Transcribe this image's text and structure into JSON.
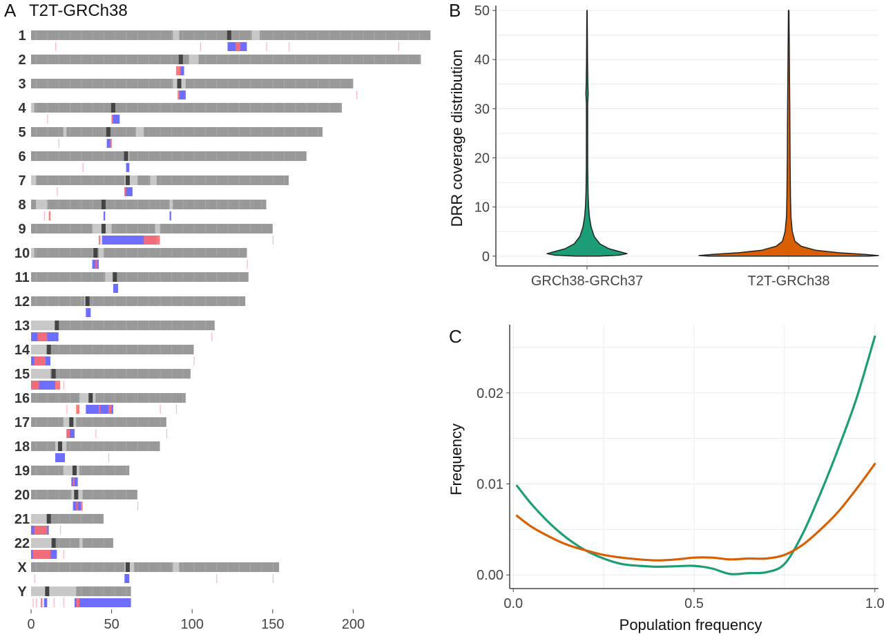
{
  "colors": {
    "chrom_body": "#999999",
    "centromere": "#444444",
    "light_band": "#c8c8c8",
    "blue": "#6d6dff",
    "red": "#ff6b6b",
    "green": "#1b9e77",
    "orange": "#d95f02"
  },
  "chart_data": [
    {
      "panel": "A",
      "type": "ideogram",
      "title": "T2T-GRCh38",
      "xlim": [
        0,
        250
      ],
      "xticks": [
        0,
        50,
        100,
        150,
        200
      ],
      "chromosomes": [
        {
          "name": "1",
          "length": 248,
          "centromere": 123,
          "light": [
            [
              88,
              92
            ],
            [
              137,
              142
            ]
          ],
          "blue": [
            [
              122,
              134
            ]
          ],
          "red": [
            [
              127,
              130
            ]
          ],
          "sparse": [
            15,
            105,
            146,
            160,
            228
          ]
        },
        {
          "name": "2",
          "length": 242,
          "centromere": 93,
          "light": [
            [
              98,
              104
            ]
          ],
          "blue": [
            [
              92,
              95
            ]
          ],
          "red": [
            [
              90,
              93
            ]
          ],
          "sparse": []
        },
        {
          "name": "3",
          "length": 200,
          "centromere": 92,
          "light": [
            [
              88,
              96
            ]
          ],
          "blue": [
            [
              92,
              96
            ]
          ],
          "red": [
            [
              91,
              92
            ]
          ],
          "sparse": [
            202
          ]
        },
        {
          "name": "4",
          "length": 193,
          "centromere": 51,
          "light": [
            [
              0,
              2
            ]
          ],
          "blue": [
            [
              50,
              55
            ]
          ],
          "red": [
            [
              50,
              51
            ]
          ],
          "sparse": [
            10
          ]
        },
        {
          "name": "5",
          "length": 181,
          "centromere": 48,
          "light": [
            [
              20,
              22
            ],
            [
              65,
              70
            ]
          ],
          "blue": [
            [
              47,
              50
            ]
          ],
          "red": [
            [
              49,
              50
            ]
          ],
          "sparse": [
            17
          ]
        },
        {
          "name": "6",
          "length": 171,
          "centromere": 59,
          "light": [
            [
              58,
              61
            ]
          ],
          "blue": [
            [
              59,
              61
            ]
          ],
          "red": [],
          "sparse": [
            32
          ]
        },
        {
          "name": "7",
          "length": 160,
          "centromere": 60,
          "light": [
            [
              0,
              3
            ],
            [
              58,
              66
            ],
            [
              74,
              78
            ]
          ],
          "blue": [
            [
              58,
              63
            ]
          ],
          "red": [
            [
              58,
              59
            ]
          ],
          "sparse": [
            16
          ]
        },
        {
          "name": "8",
          "length": 146,
          "centromere": 45,
          "light": [
            [
              3,
              10
            ],
            [
              86,
              88
            ]
          ],
          "blue": [
            [
              86,
              87
            ],
            [
              45,
              46
            ]
          ],
          "red": [
            [
              11,
              12
            ]
          ],
          "sparse": [
            8
          ]
        },
        {
          "name": "9",
          "length": 150,
          "centromere": 45,
          "light": [
            [
              38,
              50
            ],
            [
              77,
              80
            ]
          ],
          "blue": [
            [
              44,
              78
            ]
          ],
          "red": [
            [
              42,
              43
            ],
            [
              70,
              80
            ]
          ],
          "sparse": [
            150
          ]
        },
        {
          "name": "10",
          "length": 134,
          "centromere": 40,
          "light": [
            [
              0,
              2
            ],
            [
              42,
              45
            ]
          ],
          "blue": [
            [
              38,
              42
            ]
          ],
          "red": [
            [
              40,
              41
            ]
          ],
          "sparse": [
            134
          ]
        },
        {
          "name": "11",
          "length": 135,
          "centromere": 52,
          "light": [
            [
              46,
              52
            ]
          ],
          "blue": [
            [
              51,
              54
            ]
          ],
          "red": [],
          "sparse": []
        },
        {
          "name": "12",
          "length": 133,
          "centromere": 35,
          "light": [
            [
              33,
              35
            ]
          ],
          "blue": [
            [
              34,
              37
            ]
          ],
          "red": [],
          "sparse": []
        },
        {
          "name": "13",
          "length": 114,
          "centromere": 16,
          "light": [
            [
              0,
              15
            ]
          ],
          "blue": [
            [
              0,
              17
            ]
          ],
          "red": [
            [
              4,
              10
            ]
          ],
          "sparse": [
            112
          ]
        },
        {
          "name": "14",
          "length": 101,
          "centromere": 11,
          "light": [
            [
              0,
              10
            ]
          ],
          "blue": [
            [
              0,
              12
            ]
          ],
          "red": [
            [
              2,
              9
            ]
          ],
          "sparse": [
            101
          ]
        },
        {
          "name": "15",
          "length": 99,
          "centromere": 14,
          "light": [
            [
              0,
              12
            ]
          ],
          "blue": [
            [
              0,
              15
            ]
          ],
          "red": [
            [
              0,
              5
            ],
            [
              15,
              18
            ]
          ],
          "sparse": [
            20
          ]
        },
        {
          "name": "16",
          "length": 96,
          "centromere": 37,
          "light": [
            [
              30,
              40
            ]
          ],
          "blue": [
            [
              34,
              51
            ]
          ],
          "red": [
            [
              28,
              30
            ],
            [
              42,
              43
            ],
            [
              48,
              50
            ]
          ],
          "sparse": [
            22,
            80,
            90
          ]
        },
        {
          "name": "17",
          "length": 84,
          "centromere": 25,
          "light": [
            [
              20,
              28
            ]
          ],
          "blue": [
            [
              22,
              27
            ]
          ],
          "red": [
            [
              22,
              24
            ]
          ],
          "sparse": [
            40,
            84
          ]
        },
        {
          "name": "18",
          "length": 80,
          "centromere": 18,
          "light": [
            [
              15,
              22
            ]
          ],
          "blue": [
            [
              15,
              21
            ]
          ],
          "red": [],
          "sparse": [
            48
          ]
        },
        {
          "name": "19",
          "length": 61,
          "centromere": 27,
          "light": [
            [
              20,
              30
            ]
          ],
          "blue": [
            [
              25,
              29
            ]
          ],
          "red": [
            [
              26,
              27
            ]
          ],
          "sparse": []
        },
        {
          "name": "20",
          "length": 66,
          "centromere": 28,
          "light": [
            [
              25,
              32
            ]
          ],
          "blue": [
            [
              26,
              31
            ]
          ],
          "red": [
            [
              28,
              29
            ],
            [
              31,
              32
            ]
          ],
          "sparse": [
            66
          ]
        },
        {
          "name": "21",
          "length": 45,
          "centromere": 11,
          "light": [
            [
              0,
              11
            ]
          ],
          "blue": [
            [
              0,
              11
            ]
          ],
          "red": [
            [
              2,
              10
            ]
          ],
          "sparse": [
            18
          ]
        },
        {
          "name": "22",
          "length": 51,
          "centromere": 14,
          "light": [
            [
              0,
              13
            ],
            [
              30,
              32
            ]
          ],
          "blue": [
            [
              0,
              16
            ]
          ],
          "red": [
            [
              1,
              12
            ]
          ],
          "sparse": [
            20
          ]
        },
        {
          "name": "X",
          "length": 154,
          "centromere": 60,
          "light": [
            [
              58,
              64
            ],
            [
              88,
              92
            ]
          ],
          "blue": [
            [
              58,
              61
            ]
          ],
          "red": [],
          "sparse": [
            2,
            115,
            150
          ]
        },
        {
          "name": "Y",
          "length": 62,
          "centromere": 10,
          "light": [
            [
              0,
              28
            ]
          ],
          "blue": [
            [
              27,
              62
            ],
            [
              8,
              10
            ]
          ],
          "red": [
            [
              6,
              7
            ],
            [
              28,
              30
            ]
          ],
          "sparse": [
            1,
            3,
            14,
            20
          ]
        }
      ]
    },
    {
      "panel": "B",
      "type": "violin",
      "categories": [
        "GRCh38-GRCh37",
        "T2T-GRCh38"
      ],
      "ylabel": "DRR coverage distribution",
      "ylim": [
        -2,
        51
      ],
      "yticks": [
        0,
        10,
        20,
        30,
        40,
        50
      ],
      "series": [
        {
          "color_key": "green",
          "profile": [
            [
              0,
              0.3
            ],
            [
              0.2,
              0.8
            ],
            [
              0.5,
              1.0
            ],
            [
              0.9,
              0.82
            ],
            [
              1.5,
              0.55
            ],
            [
              2.5,
              0.32
            ],
            [
              4,
              0.18
            ],
            [
              6,
              0.1
            ],
            [
              8,
              0.06
            ],
            [
              10,
              0.04
            ],
            [
              13,
              0.025
            ],
            [
              18,
              0.018
            ],
            [
              25,
              0.015
            ],
            [
              31,
              0.015
            ],
            [
              33,
              0.03
            ],
            [
              35,
              0.02
            ],
            [
              40,
              0.012
            ],
            [
              45,
              0.008
            ],
            [
              50,
              0.003
            ]
          ]
        },
        {
          "color_key": "orange",
          "profile": [
            [
              0,
              0.9
            ],
            [
              0.12,
              1.0
            ],
            [
              0.35,
              0.85
            ],
            [
              0.7,
              0.55
            ],
            [
              1.2,
              0.3
            ],
            [
              2,
              0.14
            ],
            [
              3,
              0.07
            ],
            [
              5,
              0.04
            ],
            [
              8,
              0.025
            ],
            [
              12,
              0.02
            ],
            [
              20,
              0.015
            ],
            [
              30,
              0.012
            ],
            [
              40,
              0.008
            ],
            [
              50,
              0.003
            ]
          ]
        }
      ]
    },
    {
      "panel": "C",
      "type": "line",
      "xlabel": "Population frequency",
      "ylabel": "Frequency",
      "xlim": [
        -0.01,
        1.01
      ],
      "ylim": [
        -0.0015,
        0.0275
      ],
      "xticks": [
        "0.0",
        "0.5",
        "1.0"
      ],
      "yticks": [
        "0.00",
        "0.01",
        "0.02"
      ],
      "series": [
        {
          "color_key": "green",
          "points": [
            [
              0.01,
              0.0098
            ],
            [
              0.05,
              0.0078
            ],
            [
              0.1,
              0.0057
            ],
            [
              0.15,
              0.004
            ],
            [
              0.2,
              0.0027
            ],
            [
              0.25,
              0.0018
            ],
            [
              0.3,
              0.0012
            ],
            [
              0.35,
              0.001
            ],
            [
              0.4,
              0.0009
            ],
            [
              0.45,
              0.00095
            ],
            [
              0.5,
              0.001
            ],
            [
              0.55,
              0.0007
            ],
            [
              0.6,
              0.0001
            ],
            [
              0.65,
              0.0002
            ],
            [
              0.7,
              0.0003
            ],
            [
              0.75,
              0.0012
            ],
            [
              0.8,
              0.0045
            ],
            [
              0.85,
              0.009
            ],
            [
              0.9,
              0.014
            ],
            [
              0.95,
              0.0195
            ],
            [
              1.0,
              0.0262
            ]
          ]
        },
        {
          "color_key": "orange",
          "points": [
            [
              0.01,
              0.0065
            ],
            [
              0.05,
              0.0053
            ],
            [
              0.1,
              0.0042
            ],
            [
              0.15,
              0.0033
            ],
            [
              0.2,
              0.0027
            ],
            [
              0.25,
              0.0022
            ],
            [
              0.3,
              0.0019
            ],
            [
              0.35,
              0.0017
            ],
            [
              0.4,
              0.0016
            ],
            [
              0.45,
              0.0017
            ],
            [
              0.5,
              0.0019
            ],
            [
              0.55,
              0.0019
            ],
            [
              0.6,
              0.0017
            ],
            [
              0.65,
              0.0018
            ],
            [
              0.7,
              0.0018
            ],
            [
              0.75,
              0.0022
            ],
            [
              0.8,
              0.0033
            ],
            [
              0.85,
              0.005
            ],
            [
              0.9,
              0.007
            ],
            [
              0.95,
              0.0095
            ],
            [
              1.0,
              0.0122
            ]
          ]
        }
      ]
    }
  ]
}
